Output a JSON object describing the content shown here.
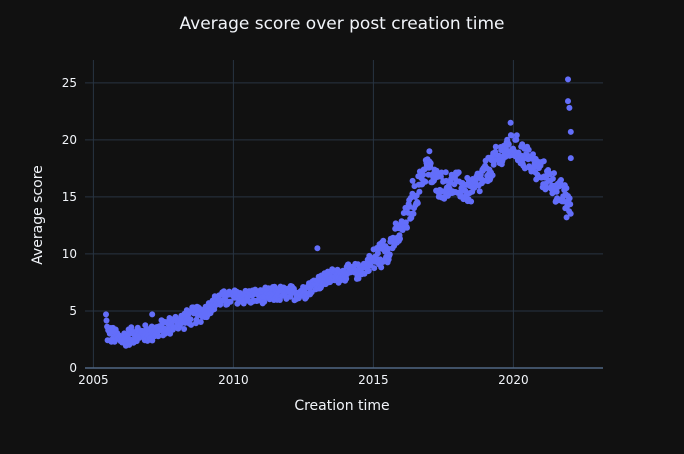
{
  "chart_data": {
    "type": "scatter",
    "title": "Average score over post creation time",
    "xlabel": "Creation time",
    "ylabel": "Average score",
    "xlim": [
      2004.7,
      2023.2
    ],
    "ylim": [
      0,
      27
    ],
    "x_ticks": [
      "2005",
      "2010",
      "2015",
      "2020"
    ],
    "y_ticks": [
      "0",
      "5",
      "10",
      "15",
      "20",
      "25"
    ],
    "grid": true,
    "legend": "none",
    "marker_color": "#636efa",
    "background_color": "#111111",
    "grid_color": "#283442",
    "text_color": "#f2f5fa",
    "key_points": [
      [
        2005.4,
        6.0
      ],
      [
        2005.5,
        3.0
      ],
      [
        2006.0,
        2.5
      ],
      [
        2006.5,
        3.0
      ],
      [
        2007.0,
        3.0
      ],
      [
        2007.5,
        3.5
      ],
      [
        2008.0,
        4.0
      ],
      [
        2008.5,
        4.5
      ],
      [
        2009.0,
        5.0
      ],
      [
        2009.5,
        6.0
      ],
      [
        2010.0,
        6.2
      ],
      [
        2010.5,
        6.3
      ],
      [
        2011.0,
        6.2
      ],
      [
        2011.5,
        6.5
      ],
      [
        2012.0,
        6.5
      ],
      [
        2012.5,
        6.7
      ],
      [
        2013.0,
        7.5
      ],
      [
        2013.5,
        8.0
      ],
      [
        2014.0,
        8.3
      ],
      [
        2014.5,
        8.5
      ],
      [
        2015.0,
        9.5
      ],
      [
        2015.5,
        10.5
      ],
      [
        2016.0,
        12.0
      ],
      [
        2016.5,
        15.0
      ],
      [
        2016.9,
        17.8
      ],
      [
        2017.2,
        16.3
      ],
      [
        2017.6,
        16.0
      ],
      [
        2018.0,
        16.0
      ],
      [
        2018.5,
        15.5
      ],
      [
        2019.0,
        17.0
      ],
      [
        2019.5,
        18.5
      ],
      [
        2019.9,
        19.5
      ],
      [
        2020.2,
        19.0
      ],
      [
        2020.5,
        18.5
      ],
      [
        2020.8,
        17.5
      ],
      [
        2021.0,
        17.0
      ],
      [
        2021.3,
        16.5
      ],
      [
        2021.6,
        15.5
      ],
      [
        2021.8,
        15.0
      ],
      [
        2022.0,
        14.5
      ]
    ],
    "outliers": [
      [
        2007.1,
        4.7
      ],
      [
        2013.0,
        10.5
      ],
      [
        2016.4,
        16.4
      ],
      [
        2017.0,
        19.0
      ],
      [
        2019.9,
        21.5
      ],
      [
        2021.9,
        13.2
      ],
      [
        2021.95,
        25.3
      ],
      [
        2021.95,
        23.4
      ],
      [
        2022.0,
        22.8
      ],
      [
        2022.05,
        20.7
      ],
      [
        2022.05,
        18.4
      ]
    ]
  }
}
